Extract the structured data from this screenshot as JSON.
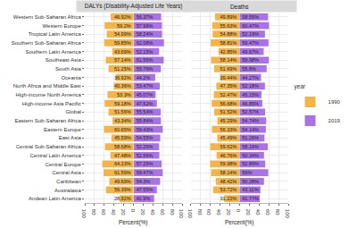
{
  "chart_data": [
    {
      "type": "bar",
      "orientation": "horizontal",
      "title": "DALYs (Disability-Adjusted Life Years)",
      "x_label": "Percent(%)",
      "categories": [
        "Western Sub-Saharan Africa",
        "Western Europe",
        "Tropical Latin America",
        "Southern Sub-Saharan Africa",
        "Southern Latin America",
        "Southeast Asia",
        "South Asia",
        "Oceania",
        "North Africa and Middle East",
        "High-income North America",
        "High-income Asia Pacific",
        "Global",
        "Eastern Sub-Saharan Africa",
        "Eastern Europe",
        "East Asia",
        "Central Sub-Saharan Africa",
        "Central Latin America",
        "Central Europe",
        "Central Asia",
        "Caribbean",
        "Australasia",
        "Andean Latin America"
      ],
      "series": [
        {
          "name": "1990",
          "color": "#f5b447",
          "values": [
            46.92,
            59.2,
            54.99,
            59.85,
            43.69,
            57.14,
            51.25,
            36.92,
            40.36,
            53.3,
            59.18,
            51.56,
            43.34,
            60.65,
            45.59,
            58.68,
            47.48,
            64.23,
            61.59,
            49.69,
            56.39,
            28.92
          ],
          "value_labels": [
            "46.92%",
            "59.2%",
            "54.99%",
            "59.85%",
            "43.69%",
            "57.14%",
            "51.25%",
            "36.92%",
            "40.36%",
            "53.3%",
            "59.18%",
            "51.56%",
            "43.34%",
            "60.65%",
            "45.59%",
            "58.68%",
            "47.48%",
            "64.23%",
            "61.59%",
            "49.69%",
            "56.39%",
            "28.92%"
          ]
        },
        {
          "name": "2019",
          "color": "#a972e6",
          "values": [
            56.37,
            57.96,
            58.24,
            62.08,
            52.15,
            61.56,
            55.79,
            44.2,
            53.47,
            45.07,
            47.62,
            55.54,
            55.84,
            59.43,
            54.55,
            52.26,
            52.66,
            57.29,
            59.47,
            54.3,
            47.55,
            41.9
          ],
          "value_labels": [
            "56.37%",
            "57.96%",
            "58.24%",
            "62.08%",
            "52.15%",
            "61.56%",
            "55.79%",
            "44.2%",
            "53.47%",
            "45.07%",
            "47.62%",
            "55.54%",
            "55.84%",
            "59.43%",
            "54.55%",
            "52.26%",
            "52.66%",
            "57.29%",
            "59.47%",
            "54.3%",
            "47.55%",
            "41.9%"
          ]
        }
      ],
      "xlim": [
        0,
        100
      ],
      "xticks": [
        0,
        20,
        40,
        60,
        80,
        100
      ],
      "grid": true,
      "data_labels": true,
      "legend": "right",
      "legend_title": "year"
    },
    {
      "type": "bar",
      "orientation": "horizontal",
      "title": "Deaths",
      "x_label": "Percent(%)",
      "categories": [
        "Western Sub-Saharan Africa",
        "Western Europe",
        "Tropical Latin America",
        "Southern Sub-Saharan Africa",
        "Southern Latin America",
        "Southeast Asia",
        "South Asia",
        "Oceania",
        "North Africa and Middle East",
        "High-income North America",
        "High-income Asia Pacific",
        "Global",
        "Eastern Sub-Saharan Africa",
        "Eastern Europe",
        "East Asia",
        "Central Sub-Saharan Africa",
        "Central Latin America",
        "Central Europe",
        "Central Asia",
        "Caribbean",
        "Australasia",
        "Andean Latin America"
      ],
      "series": [
        {
          "name": "1990",
          "color": "#f5b447",
          "values": [
            49.89,
            55.63,
            54.88,
            58.81,
            42.85,
            58.14,
            51.69,
            39.44,
            47.35,
            52.47,
            56.68,
            51.52,
            45.29,
            56.33,
            45.49,
            59.62,
            46.76,
            59.98,
            58.14,
            48.42,
            53.72,
            31.22
          ],
          "value_labels": [
            "49.89%",
            "55.63%",
            "54.88%",
            "58.81%",
            "42.85%",
            "58.14%",
            "51.69%",
            "39.44%",
            "47.35%",
            "52.47%",
            "56.68%",
            "51.52%",
            "45.29%",
            "56.33%",
            "45.49%",
            "59.62%",
            "46.76%",
            "59.98%",
            "58.14%",
            "48.42%",
            "53.72%",
            "31.22%"
          ]
        },
        {
          "name": "2019",
          "color": "#a972e6",
          "values": [
            58.55,
            60.47,
            52.19,
            59.47,
            49.67,
            59.98,
            55.8,
            44.27,
            52.18,
            45.15,
            46.85,
            52.57,
            54.74,
            54.14,
            51.26,
            58.16,
            50.34,
            52.89,
            59,
            50.28,
            43.11,
            41.77
          ],
          "value_labels": [
            "58.55%",
            "60.47%",
            "52.19%",
            "59.47%",
            "49.67%",
            "59.98%",
            "55.8%",
            "44.27%",
            "52.18%",
            "45.15%",
            "46.85%",
            "52.57%",
            "54.74%",
            "54.14%",
            "51.26%",
            "58.16%",
            "50.34%",
            "52.89%",
            "59%",
            "50.28%",
            "43.11%",
            "41.77%"
          ]
        }
      ],
      "xlim": [
        0,
        100
      ],
      "xticks": [
        0,
        20,
        40,
        60,
        80,
        100
      ],
      "grid": true,
      "data_labels": true
    }
  ]
}
